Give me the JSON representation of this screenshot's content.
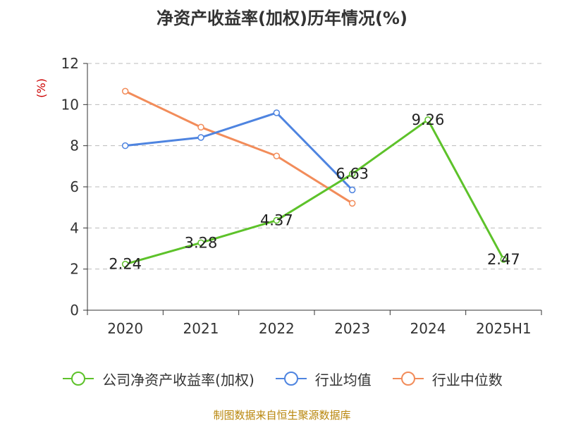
{
  "chart_data": {
    "type": "line",
    "title": "净资产收益率(加权)历年情况(%)",
    "ylabel": "(%)",
    "xlabel": "",
    "categories": [
      "2020",
      "2021",
      "2022",
      "2023",
      "2024",
      "2025H1"
    ],
    "ylim": [
      0,
      12
    ],
    "yticks": [
      0,
      2,
      4,
      6,
      8,
      10,
      12
    ],
    "grid": true,
    "legend_position": "bottom",
    "series": [
      {
        "name": "公司净资产收益率(加权)",
        "color": "#5dc22a",
        "values": [
          2.24,
          3.28,
          4.37,
          6.63,
          9.26,
          2.47
        ],
        "labels": true
      },
      {
        "name": "行业均值",
        "color": "#4e84e0",
        "values": [
          8.0,
          8.4,
          9.6,
          5.85,
          null,
          null
        ],
        "labels": false
      },
      {
        "name": "行业中位数",
        "color": "#f28c5a",
        "values": [
          10.65,
          8.9,
          7.5,
          5.2,
          null,
          null
        ],
        "labels": false
      }
    ],
    "source": "制图数据来自恒生聚源数据库"
  }
}
